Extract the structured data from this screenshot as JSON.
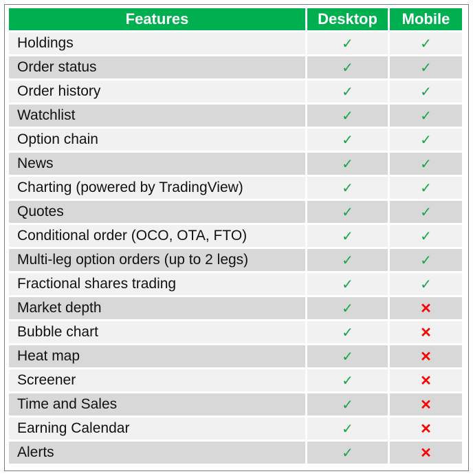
{
  "header": {
    "features": "Features",
    "desktop": "Desktop",
    "mobile": "Mobile"
  },
  "colors": {
    "header_bg": "#00b050",
    "check": "#17a34a",
    "cross": "#ff0000",
    "row_light": "#f1f1f1",
    "row_dark": "#d8d8d8"
  },
  "icons": {
    "yes": "✓",
    "no": "✕"
  },
  "rows": [
    {
      "feature": "Holdings",
      "desktop": true,
      "mobile": true
    },
    {
      "feature": "Order status",
      "desktop": true,
      "mobile": true
    },
    {
      "feature": "Order history",
      "desktop": true,
      "mobile": true
    },
    {
      "feature": "Watchlist",
      "desktop": true,
      "mobile": true
    },
    {
      "feature": "Option chain",
      "desktop": true,
      "mobile": true
    },
    {
      "feature": "News",
      "desktop": true,
      "mobile": true
    },
    {
      "feature": "Charting (powered by TradingView)",
      "desktop": true,
      "mobile": true
    },
    {
      "feature": "Quotes",
      "desktop": true,
      "mobile": true
    },
    {
      "feature": "Conditional order (OCO, OTA, FTO)",
      "desktop": true,
      "mobile": true
    },
    {
      "feature": "Multi-leg option orders (up to 2 legs)",
      "desktop": true,
      "mobile": true
    },
    {
      "feature": "Fractional shares trading",
      "desktop": true,
      "mobile": true
    },
    {
      "feature": "Market depth",
      "desktop": true,
      "mobile": false
    },
    {
      "feature": "Bubble chart",
      "desktop": true,
      "mobile": false
    },
    {
      "feature": "Heat map",
      "desktop": true,
      "mobile": false
    },
    {
      "feature": "Screener",
      "desktop": true,
      "mobile": false
    },
    {
      "feature": "Time and Sales",
      "desktop": true,
      "mobile": false
    },
    {
      "feature": "Earning Calendar",
      "desktop": true,
      "mobile": false
    },
    {
      "feature": "Alerts",
      "desktop": true,
      "mobile": false
    }
  ]
}
